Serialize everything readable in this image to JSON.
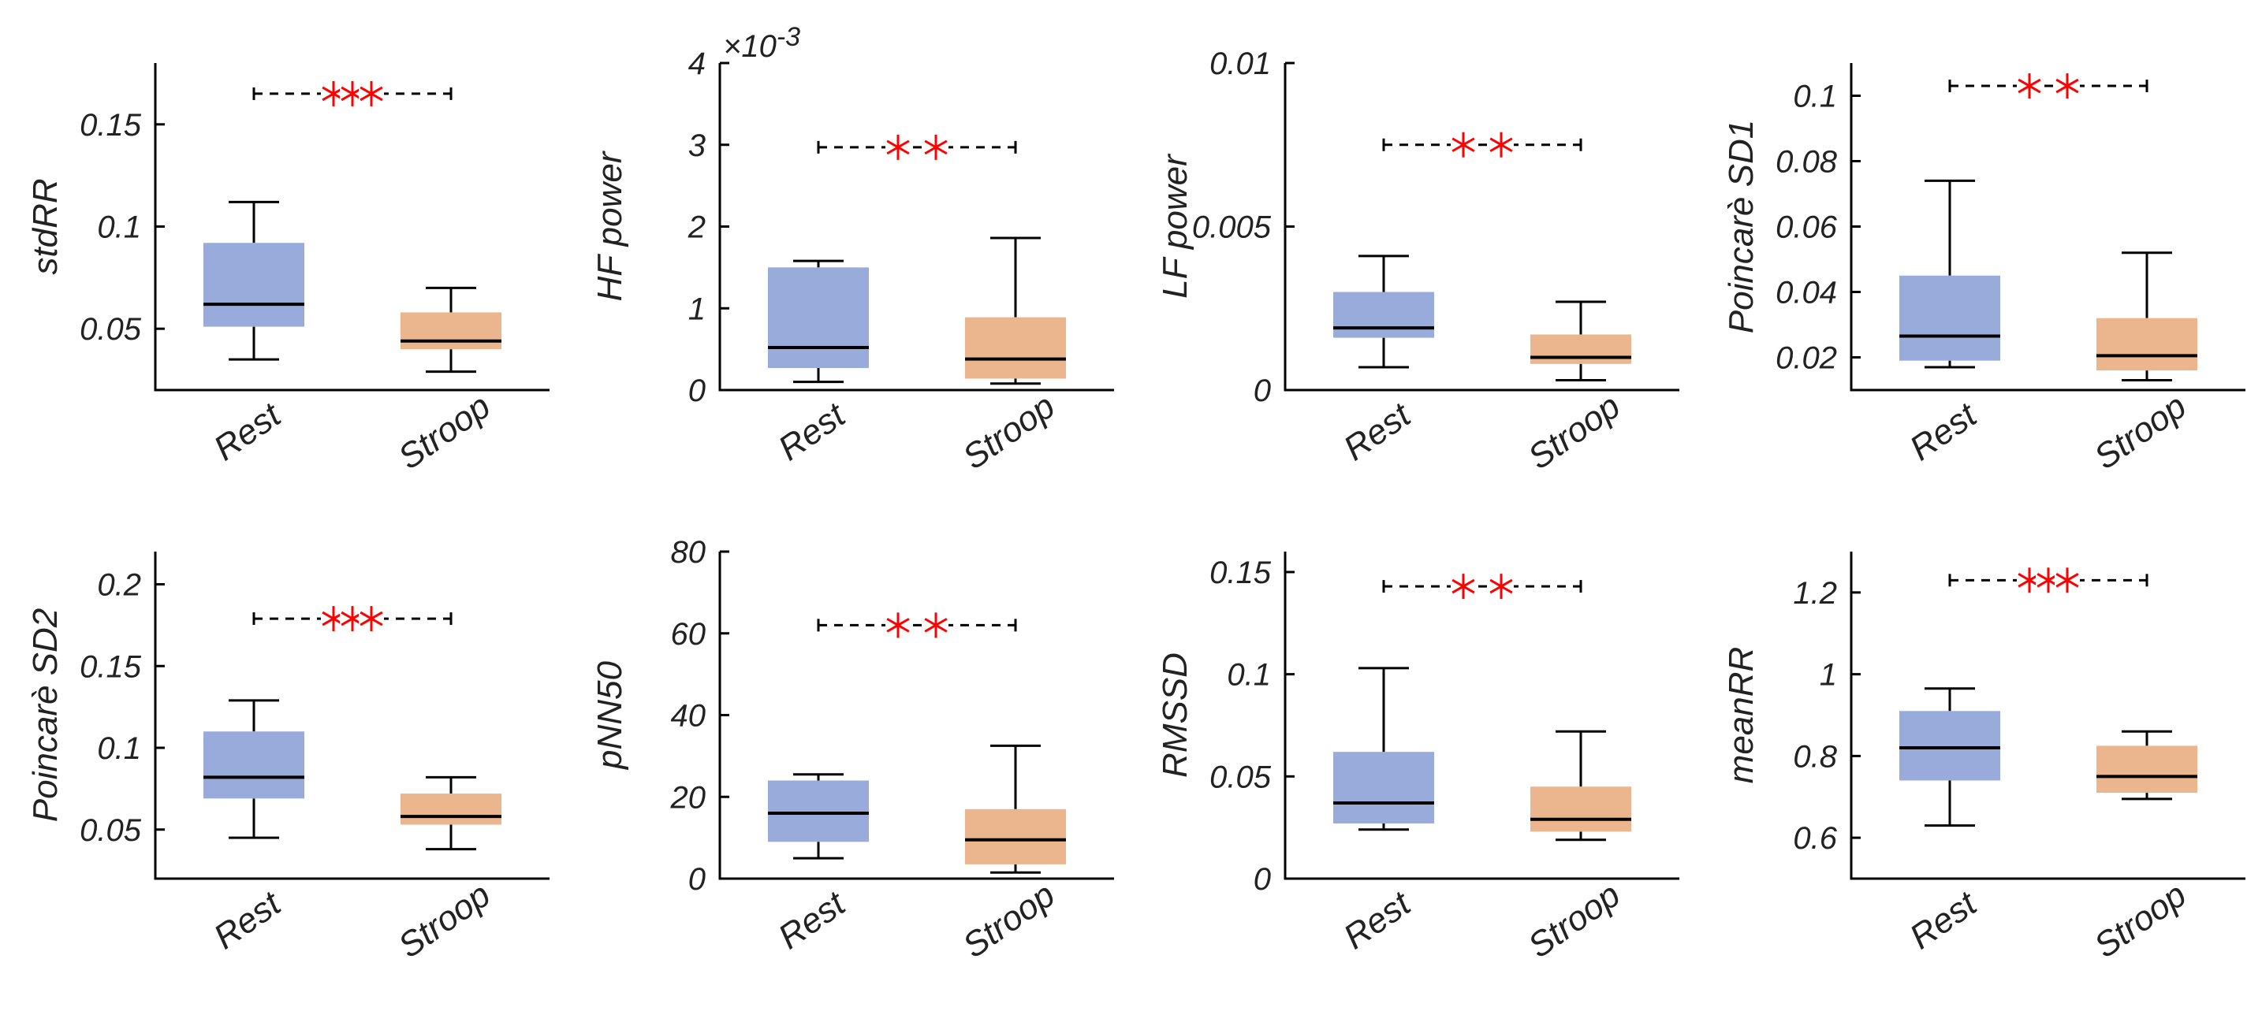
{
  "figure_title": "",
  "colors": {
    "rest": "#98abdb",
    "stroop": "#ebb68d",
    "star": "#ff0000",
    "axis": "#000000",
    "median": "#000000"
  },
  "chart_data": [
    {
      "type": "boxplot",
      "title": "",
      "ylabel": "stdRR",
      "exponent": "",
      "ylim": [
        0.02,
        0.18
      ],
      "yticks": [
        0.05,
        0.1,
        0.15
      ],
      "yticklabels": [
        "0.05",
        "0.1",
        "0.15"
      ],
      "categories": [
        "Rest",
        "Stroop"
      ],
      "series": [
        {
          "name": "Rest",
          "whisker_low": 0.035,
          "q1": 0.051,
          "median": 0.062,
          "q3": 0.092,
          "whisker_high": 0.112
        },
        {
          "name": "Stroop",
          "whisker_low": 0.029,
          "q1": 0.04,
          "median": 0.044,
          "q3": 0.058,
          "whisker_high": 0.07
        }
      ],
      "significance": {
        "y": 0.165,
        "stars": 3
      }
    },
    {
      "type": "boxplot",
      "title": "",
      "ylabel": "HF power",
      "exponent": "×10-3",
      "ylim": [
        0,
        4
      ],
      "yticks": [
        0,
        1,
        2,
        3,
        4
      ],
      "yticklabels": [
        "0",
        "1",
        "2",
        "3",
        "4"
      ],
      "categories": [
        "Rest",
        "Stroop"
      ],
      "series": [
        {
          "name": "Rest",
          "whisker_low": 0.1,
          "q1": 0.27,
          "median": 0.52,
          "q3": 1.5,
          "whisker_high": 1.58
        },
        {
          "name": "Stroop",
          "whisker_low": 0.08,
          "q1": 0.14,
          "median": 0.38,
          "q3": 0.89,
          "whisker_high": 1.86
        }
      ],
      "significance": {
        "y": 2.97,
        "stars": 2
      }
    },
    {
      "type": "boxplot",
      "title": "",
      "ylabel": "LF power",
      "exponent": "",
      "ylim": [
        0,
        0.01
      ],
      "yticks": [
        0,
        0.005,
        0.01
      ],
      "yticklabels": [
        "0",
        "0.005",
        "0.01"
      ],
      "categories": [
        "Rest",
        "Stroop"
      ],
      "series": [
        {
          "name": "Rest",
          "whisker_low": 0.0007,
          "q1": 0.0016,
          "median": 0.0019,
          "q3": 0.003,
          "whisker_high": 0.0041
        },
        {
          "name": "Stroop",
          "whisker_low": 0.0003,
          "q1": 0.0008,
          "median": 0.001,
          "q3": 0.0017,
          "whisker_high": 0.0027
        }
      ],
      "significance": {
        "y": 0.0075,
        "stars": 2
      }
    },
    {
      "type": "boxplot",
      "title": "",
      "ylabel": "Poincarè SD1",
      "exponent": "",
      "ylim": [
        0.01,
        0.11
      ],
      "yticks": [
        0.02,
        0.04,
        0.06,
        0.08,
        0.1
      ],
      "yticklabels": [
        "0.02",
        "0.04",
        "0.06",
        "0.08",
        "0.1"
      ],
      "categories": [
        "Rest",
        "Stroop"
      ],
      "series": [
        {
          "name": "Rest",
          "whisker_low": 0.017,
          "q1": 0.019,
          "median": 0.0265,
          "q3": 0.045,
          "whisker_high": 0.074
        },
        {
          "name": "Stroop",
          "whisker_low": 0.013,
          "q1": 0.016,
          "median": 0.0205,
          "q3": 0.032,
          "whisker_high": 0.052
        }
      ],
      "significance": {
        "y": 0.103,
        "stars": 2
      }
    },
    {
      "type": "boxplot",
      "title": "",
      "ylabel": "Poincarè SD2",
      "exponent": "",
      "ylim": [
        0.02,
        0.22
      ],
      "yticks": [
        0.05,
        0.1,
        0.15,
        0.2
      ],
      "yticklabels": [
        "0.05",
        "0.1",
        "0.15",
        "0.2"
      ],
      "categories": [
        "Rest",
        "Stroop"
      ],
      "series": [
        {
          "name": "Rest",
          "whisker_low": 0.045,
          "q1": 0.069,
          "median": 0.082,
          "q3": 0.11,
          "whisker_high": 0.129
        },
        {
          "name": "Stroop",
          "whisker_low": 0.038,
          "q1": 0.053,
          "median": 0.058,
          "q3": 0.072,
          "whisker_high": 0.082
        }
      ],
      "significance": {
        "y": 0.179,
        "stars": 3
      }
    },
    {
      "type": "boxplot",
      "title": "",
      "ylabel": "pNN50",
      "exponent": "",
      "ylim": [
        0,
        80
      ],
      "yticks": [
        0,
        20,
        40,
        60,
        80
      ],
      "yticklabels": [
        "0",
        "20",
        "40",
        "60",
        "80"
      ],
      "categories": [
        "Rest",
        "Stroop"
      ],
      "series": [
        {
          "name": "Rest",
          "whisker_low": 5,
          "q1": 9,
          "median": 16,
          "q3": 24,
          "whisker_high": 25.5
        },
        {
          "name": "Stroop",
          "whisker_low": 1.5,
          "q1": 3.5,
          "median": 9.5,
          "q3": 17,
          "whisker_high": 32.5
        }
      ],
      "significance": {
        "y": 62,
        "stars": 2
      }
    },
    {
      "type": "boxplot",
      "title": "",
      "ylabel": "RMSSD",
      "exponent": "",
      "ylim": [
        0,
        0.16
      ],
      "yticks": [
        0,
        0.05,
        0.1,
        0.15
      ],
      "yticklabels": [
        "0",
        "0.05",
        "0.1",
        "0.15"
      ],
      "categories": [
        "Rest",
        "Stroop"
      ],
      "series": [
        {
          "name": "Rest",
          "whisker_low": 0.024,
          "q1": 0.027,
          "median": 0.037,
          "q3": 0.062,
          "whisker_high": 0.103
        },
        {
          "name": "Stroop",
          "whisker_low": 0.019,
          "q1": 0.023,
          "median": 0.029,
          "q3": 0.045,
          "whisker_high": 0.072
        }
      ],
      "significance": {
        "y": 0.143,
        "stars": 2
      }
    },
    {
      "type": "boxplot",
      "title": "",
      "ylabel": "meanRR",
      "exponent": "",
      "ylim": [
        0.5,
        1.3
      ],
      "yticks": [
        0.6,
        0.8,
        1,
        1.2
      ],
      "yticklabels": [
        "0.6",
        "0.8",
        "1",
        "1.2"
      ],
      "categories": [
        "Rest",
        "Stroop"
      ],
      "series": [
        {
          "name": "Rest",
          "whisker_low": 0.63,
          "q1": 0.74,
          "median": 0.82,
          "q3": 0.91,
          "whisker_high": 0.965
        },
        {
          "name": "Stroop",
          "whisker_low": 0.695,
          "q1": 0.71,
          "median": 0.75,
          "q3": 0.825,
          "whisker_high": 0.86
        }
      ],
      "significance": {
        "y": 1.23,
        "stars": 3
      }
    }
  ]
}
